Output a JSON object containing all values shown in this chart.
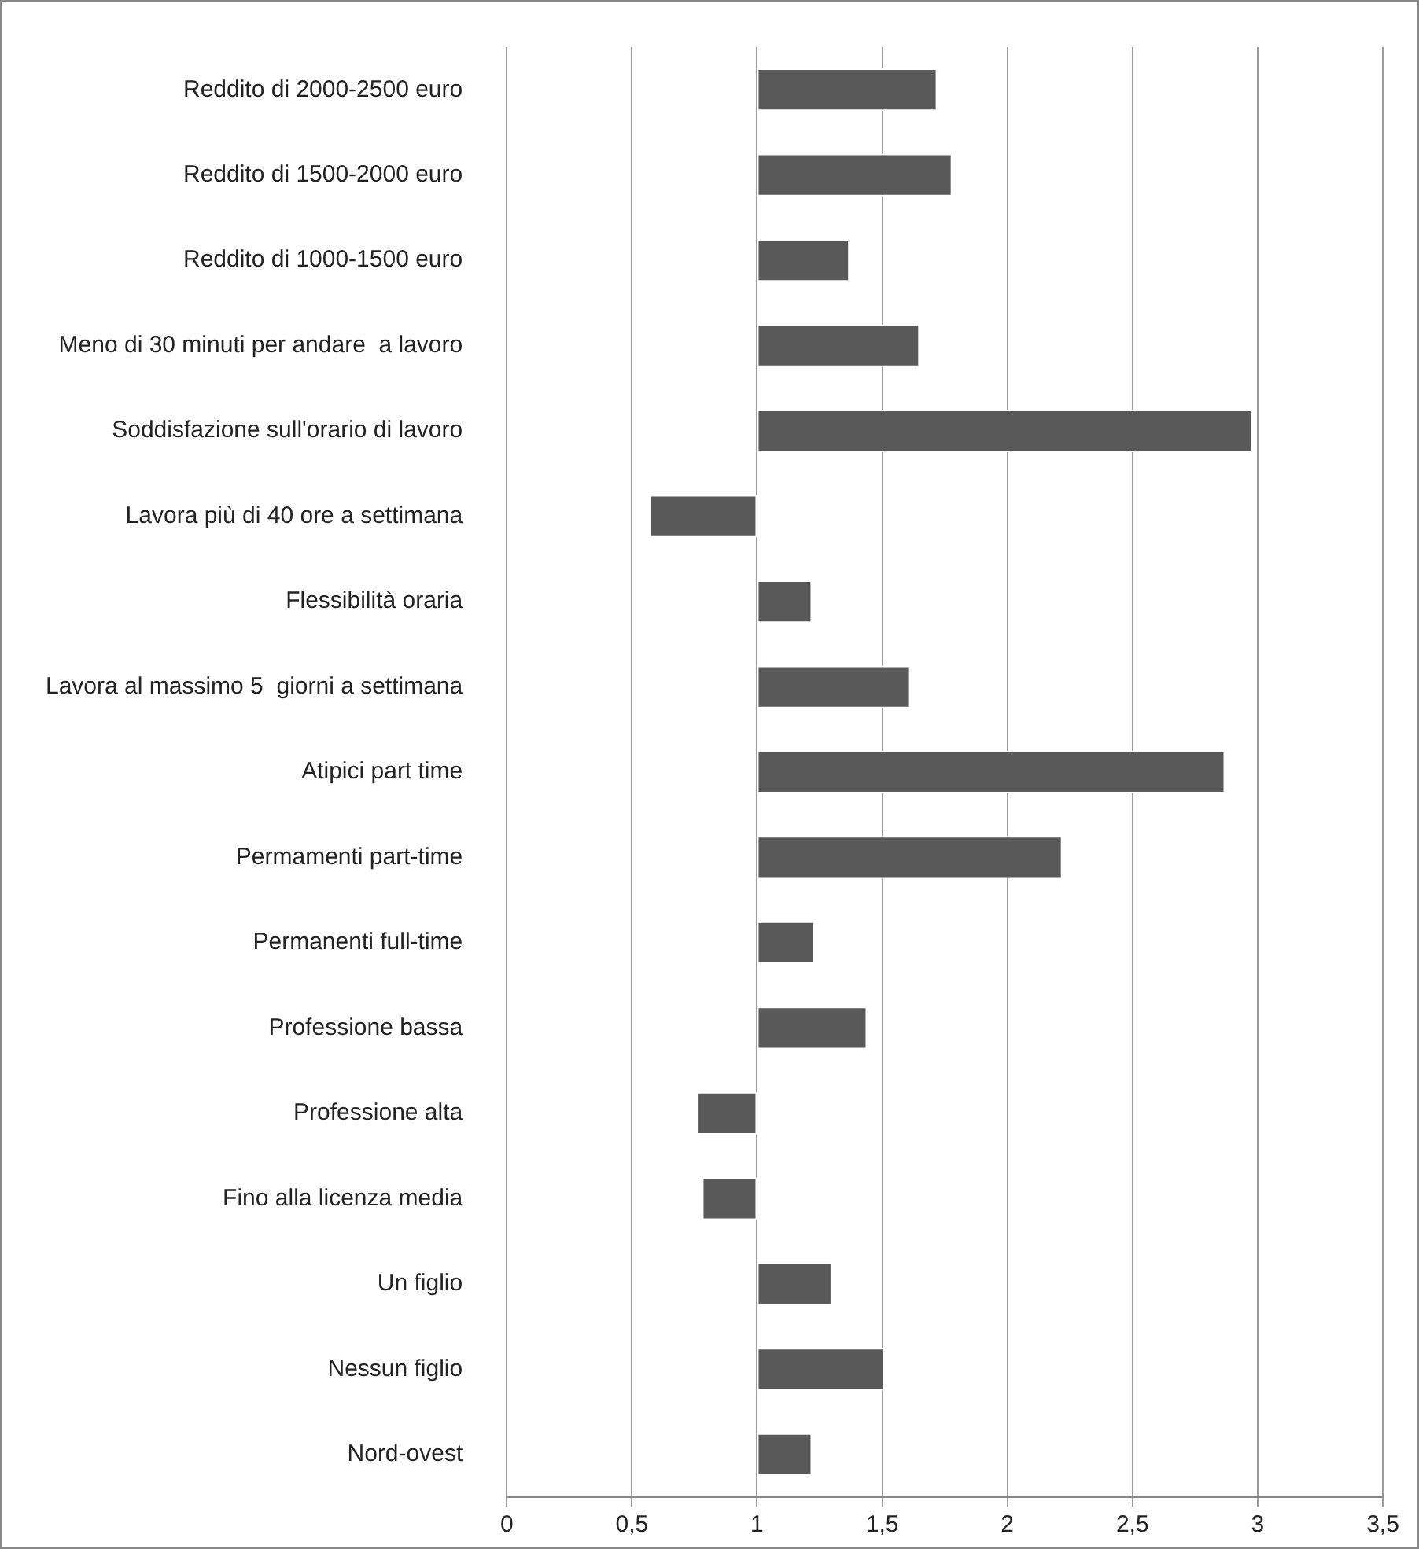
{
  "chart_data": {
    "type": "bar",
    "orientation": "horizontal",
    "categories": [
      "Reddito di 2000-2500 euro",
      "Reddito di 1500-2000 euro",
      "Reddito di 1000-1500 euro",
      "Meno di 30 minuti per andare  a lavoro",
      "Soddisfazione sull'orario di lavoro",
      "Lavora più di 40 ore a settimana",
      "Flessibilità oraria",
      "Lavora al massimo 5  giorni a settimana",
      "Atipici part time",
      "Permamenti part-time",
      "Permanenti full-time",
      "Professione bassa",
      "Professione alta",
      "Fino alla licenza media",
      "Un figlio",
      "Nessun figlio",
      "Nord-ovest"
    ],
    "base": [
      1,
      1,
      1,
      1,
      1,
      1,
      1,
      1,
      1,
      1,
      1,
      1,
      1,
      1,
      1,
      1,
      1
    ],
    "values": [
      0.72,
      0.78,
      0.37,
      0.65,
      1.98,
      -0.43,
      0.22,
      0.61,
      1.87,
      1.22,
      0.23,
      0.44,
      -0.24,
      -0.22,
      0.3,
      0.51,
      0.22
    ],
    "color": "#595959",
    "xlim": [
      0,
      3.5
    ],
    "xticks": [
      {
        "value": 0,
        "label": "0"
      },
      {
        "value": 0.5,
        "label": "0,5"
      },
      {
        "value": 1,
        "label": "1"
      },
      {
        "value": 1.5,
        "label": "1,5"
      },
      {
        "value": 2,
        "label": "2"
      },
      {
        "value": 2.5,
        "label": "2,5"
      },
      {
        "value": 3,
        "label": "3"
      },
      {
        "value": 3.5,
        "label": "3,5"
      }
    ],
    "grid": "x",
    "legend": false
  }
}
